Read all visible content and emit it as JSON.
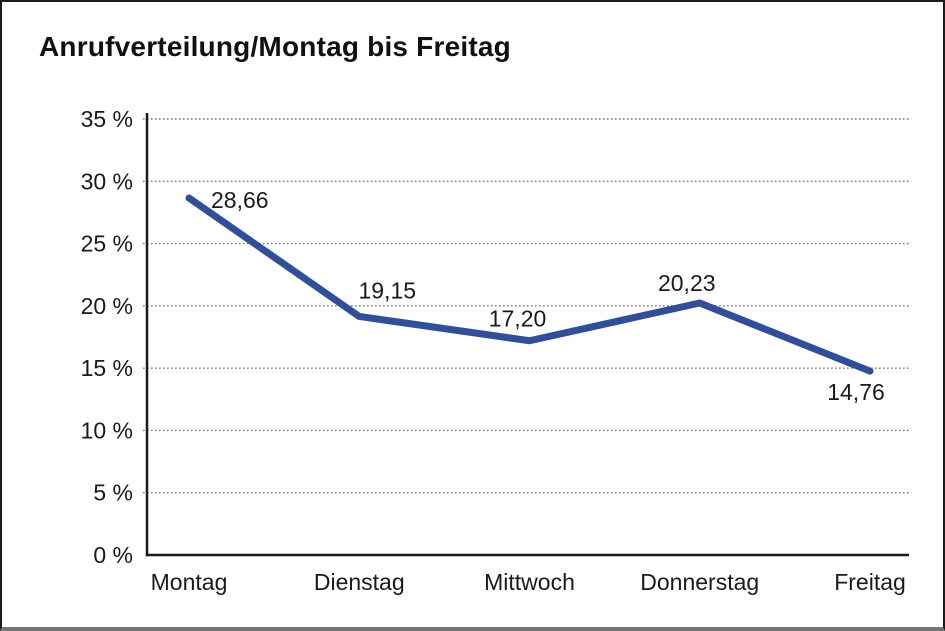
{
  "page": {
    "background_color": "#ffffff",
    "frame_border_color": "#1b1b1b"
  },
  "chart_data": {
    "type": "line",
    "title": "Anrufverteilung/Montag bis Freitag",
    "categories": [
      "Montag",
      "Dienstag",
      "Mittwoch",
      "Donnerstag",
      "Freitag"
    ],
    "series": [
      {
        "name": "Anrufverteilung",
        "values": [
          28.66,
          19.15,
          17.2,
          20.23,
          14.76
        ]
      }
    ],
    "point_labels": [
      "28,66",
      "19,15",
      "17,20",
      "20,23",
      "14,76"
    ],
    "ytick_labels": [
      "35 %",
      "30 %",
      "25 %",
      "20 %",
      "15 %",
      "10 %",
      "5 %",
      "0 %"
    ],
    "ylim": [
      0,
      35
    ],
    "ytick_step": 5,
    "unit": "%",
    "grid": "horizontal-dotted",
    "legend": "none",
    "line_color": "#2f4f9c",
    "axis_color": "#1a1a1a",
    "gridline_color": "#787878",
    "label_color": "#1a1a1a"
  }
}
